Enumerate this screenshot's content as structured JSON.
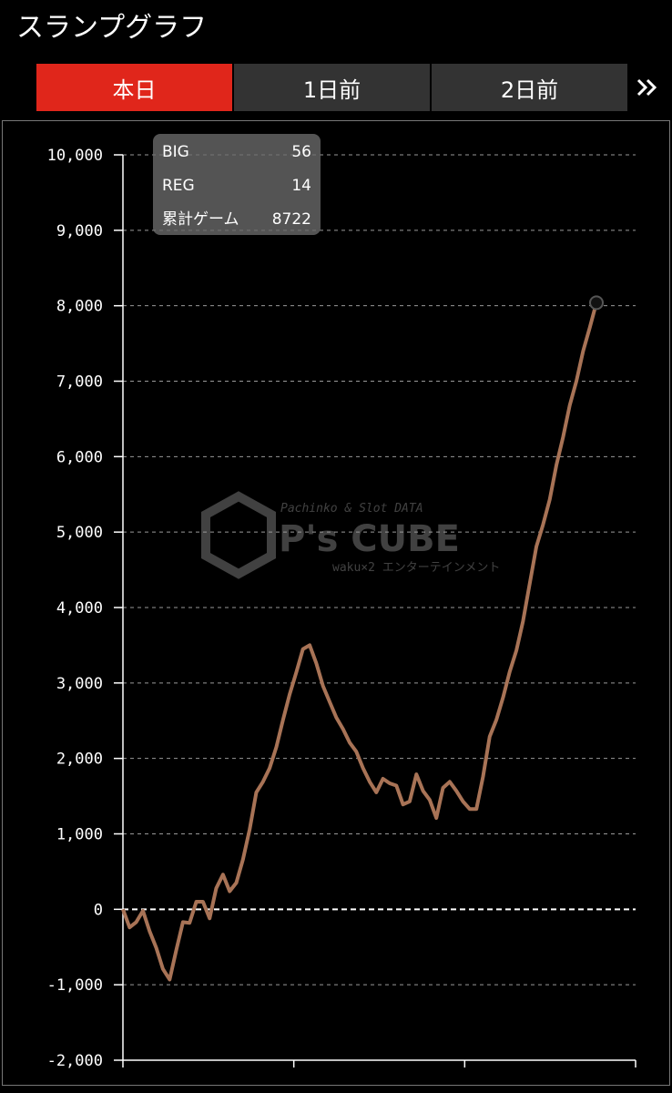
{
  "header": {
    "title": "スランプグラフ"
  },
  "tabs": [
    "本日",
    "1日前",
    "2日前"
  ],
  "info": {
    "rows": [
      {
        "label": "BIG",
        "value": "56"
      },
      {
        "label": "REG",
        "value": "14"
      },
      {
        "label": "累計ゲーム",
        "value": "8722"
      }
    ]
  },
  "watermark": {
    "top": "Pachinko & Slot DATA",
    "logo": "P's CUBE",
    "bottom": "waku×2 エンターテインメント"
  },
  "chart_data": {
    "type": "line",
    "series": [
      {
        "color": "#a87356",
        "values": [
          0,
          -240,
          -170,
          -20,
          -290,
          -510,
          -790,
          -930,
          -540,
          -170,
          -180,
          100,
          100,
          -120,
          280,
          460,
          240,
          350,
          660,
          1060,
          1550,
          1690,
          1870,
          2150,
          2510,
          2850,
          3140,
          3450,
          3500,
          3260,
          2960,
          2750,
          2540,
          2390,
          2210,
          2090,
          1870,
          1690,
          1550,
          1730,
          1670,
          1640,
          1390,
          1430,
          1790,
          1570,
          1450,
          1210,
          1610,
          1690,
          1570,
          1430,
          1330,
          1330,
          1760,
          2290,
          2510,
          2810,
          3150,
          3430,
          3820,
          4320,
          4810,
          5100,
          5430,
          5890,
          6260,
          6680,
          7000,
          7400,
          7710,
          8040
        ]
      }
    ],
    "ylim": [
      -2000,
      10000
    ],
    "yticks": [
      {
        "value": -2000,
        "label": "-2,000"
      },
      {
        "value": -1000,
        "label": "-1,000"
      },
      0,
      {
        "value": 1000,
        "label": "1,000"
      },
      {
        "value": 2000,
        "label": "2,000"
      },
      {
        "value": 3000,
        "label": "3,000"
      },
      {
        "value": 4000,
        "label": "4,000"
      },
      {
        "value": 5000,
        "label": "5,000"
      },
      {
        "value": 6000,
        "label": "6,000"
      },
      {
        "value": 7000,
        "label": "7,000"
      },
      {
        "value": 8000,
        "label": "8,000"
      },
      {
        "value": 9000,
        "label": "9,000"
      },
      {
        "value": 10000,
        "label": "10,000"
      }
    ],
    "grid": true
  }
}
